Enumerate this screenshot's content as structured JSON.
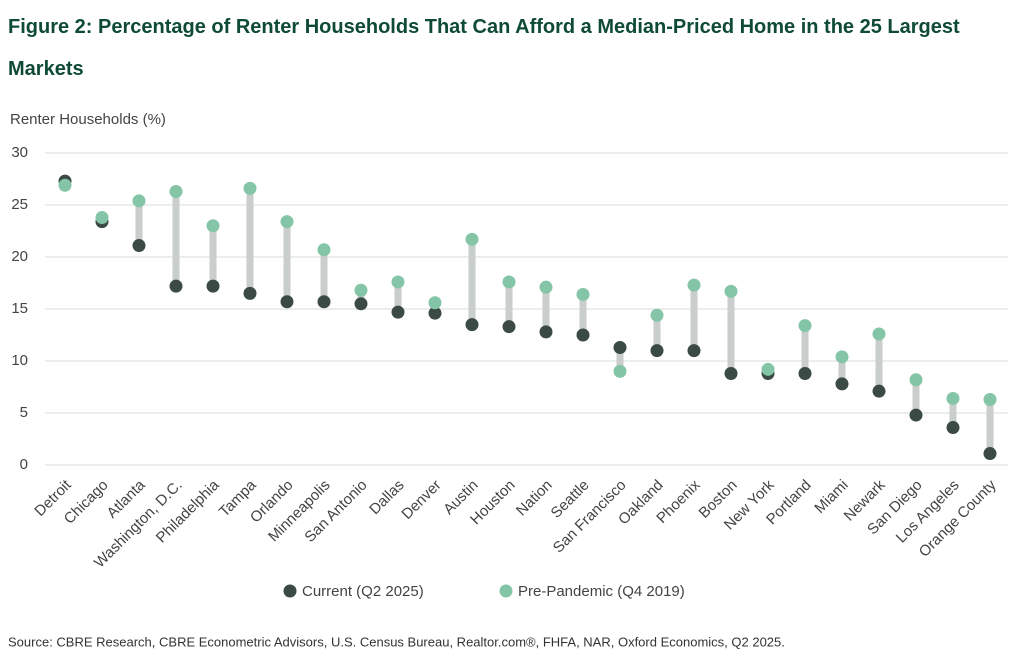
{
  "chart_data": {
    "type": "dumbbell",
    "title": "Figure 2: Percentage of Renter Households That Can Afford a Median-Priced Home in the 25 Largest Markets",
    "y_label": "Renter Households (%)",
    "source": "Source: CBRE Research, CBRE Econometric Advisors, U.S. Census Bureau, Realtor.com®, FHFA, NAR, Oxford Economics, Q2 2025.",
    "categories": [
      "Detroit",
      "Chicago",
      "Atlanta",
      "Washington, D.C.",
      "Philadelphia",
      "Tampa",
      "Orlando",
      "Minneapolis",
      "San Antonio",
      "Dallas",
      "Denver",
      "Austin",
      "Houston",
      "Nation",
      "Seattle",
      "San Francisco",
      "Oakland",
      "Phoenix",
      "Boston",
      "New York",
      "Portland",
      "Miami",
      "Newark",
      "San Diego",
      "Los Angeles",
      "Orange County"
    ],
    "series": [
      {
        "name": "Current (Q2 2025)",
        "color": "#3b4a45",
        "values": [
          27.3,
          23.4,
          21.1,
          17.2,
          17.2,
          16.5,
          15.7,
          15.7,
          15.5,
          14.7,
          14.6,
          13.5,
          13.3,
          12.8,
          12.5,
          11.3,
          11.0,
          11.0,
          8.8,
          8.8,
          8.8,
          7.8,
          7.1,
          4.8,
          3.6,
          1.1
        ]
      },
      {
        "name": "Pre-Pandemic (Q4 2019)",
        "color": "#84c5a7",
        "values": [
          26.9,
          23.8,
          25.4,
          26.3,
          23.0,
          26.6,
          23.4,
          20.7,
          16.8,
          17.6,
          15.6,
          21.7,
          17.6,
          17.1,
          16.4,
          9.0,
          14.4,
          17.3,
          16.7,
          9.2,
          13.4,
          10.4,
          12.6,
          8.2,
          6.4,
          6.3
        ]
      }
    ],
    "connector_color": "#c9cdcc",
    "ylim": [
      0,
      30
    ],
    "yticks": [
      0,
      5,
      10,
      15,
      20,
      25,
      30
    ],
    "grid": true
  }
}
